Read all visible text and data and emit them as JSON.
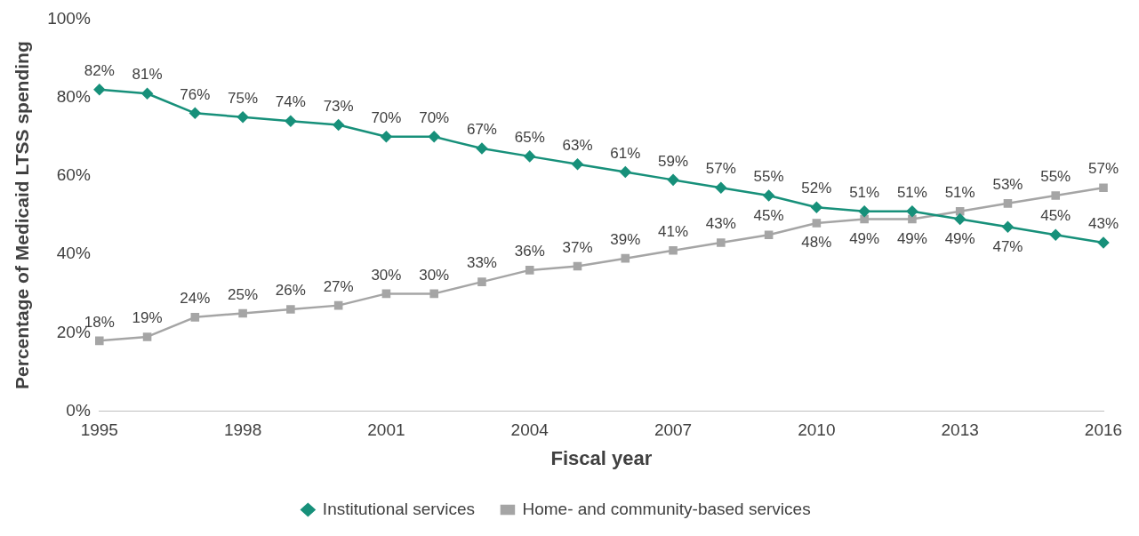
{
  "chart_data": {
    "type": "line",
    "xlabel": "Fiscal year",
    "ylabel": "Percentage of Medicaid LTSS spending",
    "x": [
      1995,
      1996,
      1997,
      1998,
      1999,
      2000,
      2001,
      2002,
      2003,
      2004,
      2005,
      2006,
      2007,
      2008,
      2009,
      2010,
      2011,
      2012,
      2013,
      2014,
      2015,
      2016
    ],
    "xlim": [
      1995,
      2016
    ],
    "xticks": [
      1995,
      1998,
      2001,
      2004,
      2007,
      2010,
      2013,
      2016
    ],
    "ylim": [
      0,
      100
    ],
    "yticks": [
      {
        "value": 0,
        "label": "0%"
      },
      {
        "value": 20,
        "label": "20%"
      },
      {
        "value": 40,
        "label": "40%"
      },
      {
        "value": 60,
        "label": "60%"
      },
      {
        "value": 80,
        "label": "80%"
      },
      {
        "value": 100,
        "label": "100%"
      }
    ],
    "series": [
      {
        "name": "Institutional services",
        "color": "#17907a",
        "marker": "diamond",
        "values": [
          82,
          81,
          76,
          75,
          74,
          73,
          70,
          70,
          67,
          65,
          63,
          61,
          59,
          57,
          55,
          52,
          51,
          51,
          49,
          47,
          45,
          43
        ],
        "value_labels": [
          "82%",
          "81%",
          "76%",
          "75%",
          "74%",
          "73%",
          "70%",
          "70%",
          "67%",
          "65%",
          "63%",
          "61%",
          "59%",
          "57%",
          "55%",
          "52%",
          "51%",
          "51%",
          "49%",
          "47%",
          "45%",
          "43%"
        ]
      },
      {
        "name": "Home- and community-based services",
        "color": "#a5a5a5",
        "marker": "square",
        "values": [
          18,
          19,
          24,
          25,
          26,
          27,
          30,
          30,
          33,
          36,
          37,
          39,
          41,
          43,
          45,
          48,
          49,
          49,
          51,
          53,
          55,
          57
        ],
        "value_labels": [
          "18%",
          "19%",
          "24%",
          "25%",
          "26%",
          "27%",
          "30%",
          "30%",
          "33%",
          "36%",
          "37%",
          "39%",
          "41%",
          "43%",
          "45%",
          "48%",
          "49%",
          "49%",
          "51%",
          "53%",
          "55%",
          "57%"
        ]
      }
    ],
    "grid": false,
    "legend": "bottom",
    "line_style": "solid"
  }
}
